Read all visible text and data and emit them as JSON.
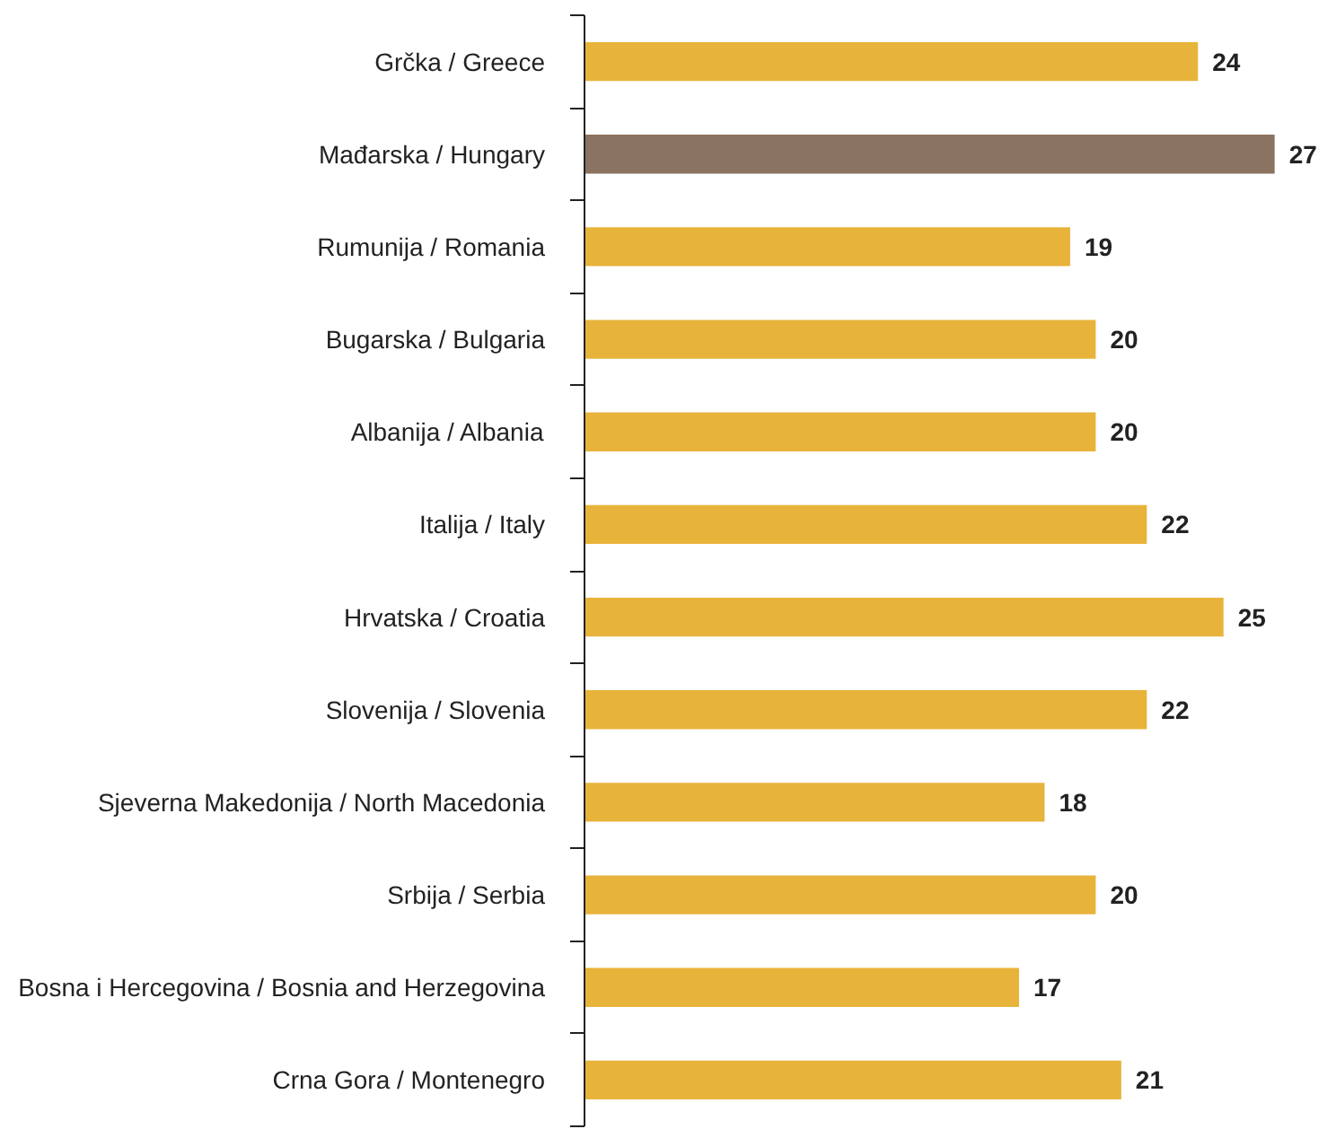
{
  "chart_data": {
    "type": "bar",
    "orientation": "horizontal",
    "categories": [
      "Grčka / Greece",
      "Mađarska / Hungary",
      "Rumunija / Romania",
      "Bugarska / Bulgaria",
      "Albanija / Albania",
      "Italija / Italy",
      "Hrvatska / Croatia",
      "Slovenija / Slovenia",
      "Sjeverna Makedonija / North Macedonia",
      "Srbija / Serbia",
      "Bosna i Hercegovina / Bosnia and Herzegovina",
      "Crna Gora / Montenegro"
    ],
    "values": [
      24,
      27,
      19,
      20,
      20,
      22,
      25,
      22,
      18,
      20,
      17,
      21
    ],
    "colors": [
      "#e8b33a",
      "#8a7360",
      "#e8b33a",
      "#e8b33a",
      "#e8b33a",
      "#e8b33a",
      "#e8b33a",
      "#e8b33a",
      "#e8b33a",
      "#e8b33a",
      "#e8b33a",
      "#e8b33a"
    ],
    "data_labels": true,
    "grid": false
  }
}
